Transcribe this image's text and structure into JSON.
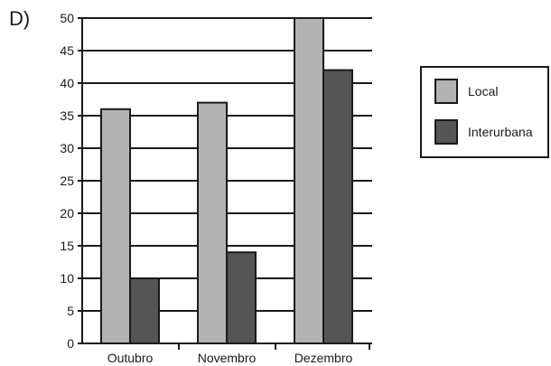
{
  "panel_label": "D)",
  "colors": {
    "local": "#b3b3b3",
    "interurbana": "#555555",
    "stroke": "#1a1a1a"
  },
  "chart_data": {
    "type": "bar",
    "categories": [
      "Outubro",
      "Novembro",
      "Dezembro"
    ],
    "series": [
      {
        "name": "Local",
        "values": [
          36,
          37,
          50
        ]
      },
      {
        "name": "Interurbana",
        "values": [
          10,
          14,
          42
        ]
      }
    ],
    "ylim": [
      0,
      50
    ],
    "yticks": [
      0,
      5,
      10,
      15,
      20,
      25,
      30,
      35,
      40,
      45,
      50
    ],
    "grid": "horizontal",
    "legend_position": "right"
  }
}
